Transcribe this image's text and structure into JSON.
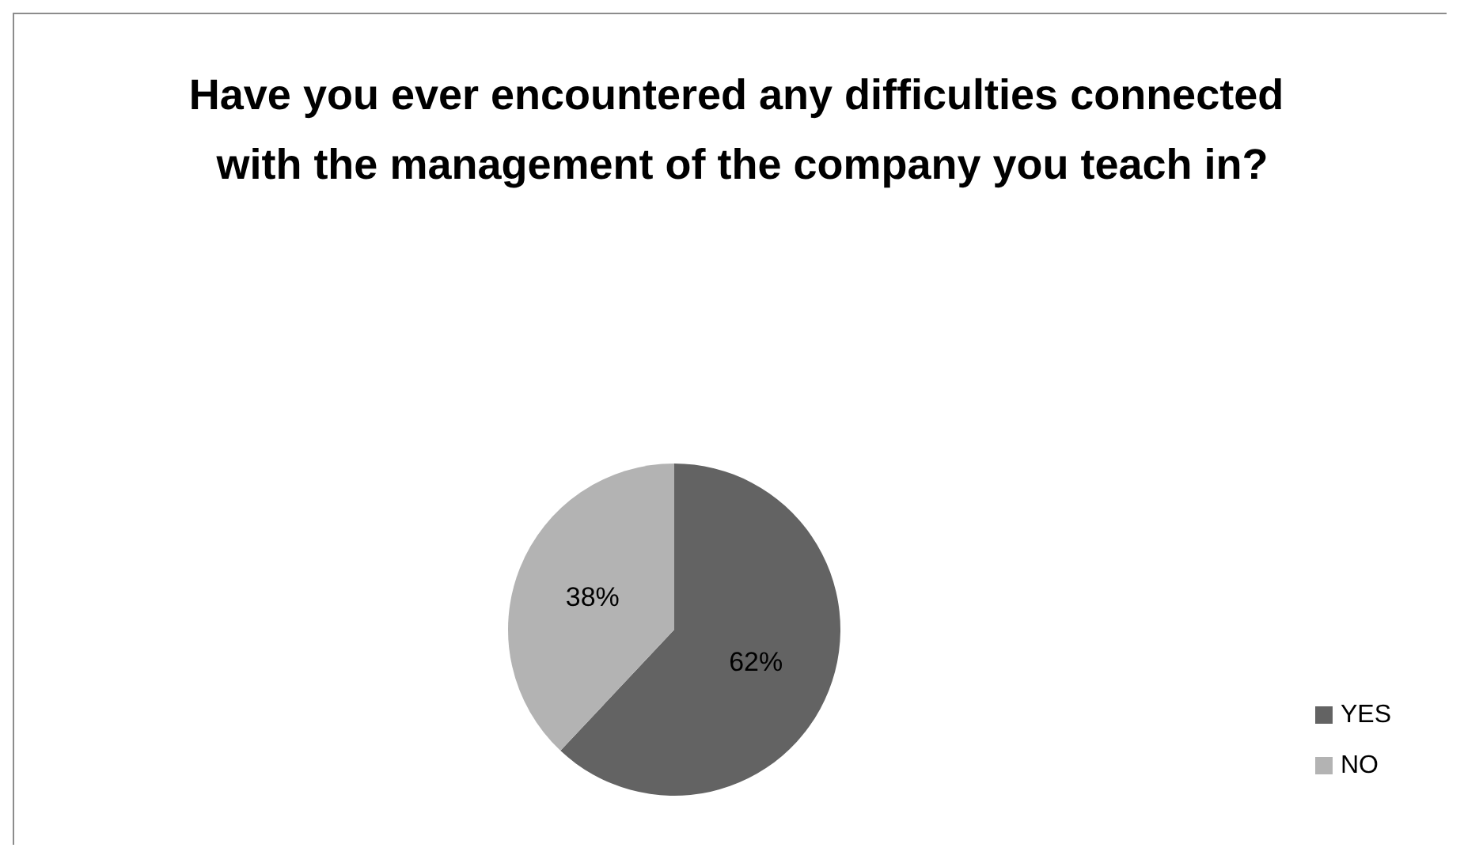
{
  "chart_data": {
    "type": "pie",
    "title": "Have you ever encountered any difficulties connected with the management of the company you teach in?",
    "categories": [
      "YES",
      "NO"
    ],
    "values": [
      62,
      38
    ],
    "colors": [
      "#636363",
      "#b3b3b3"
    ],
    "value_labels": [
      "62%",
      "38%"
    ],
    "legend": "right"
  }
}
